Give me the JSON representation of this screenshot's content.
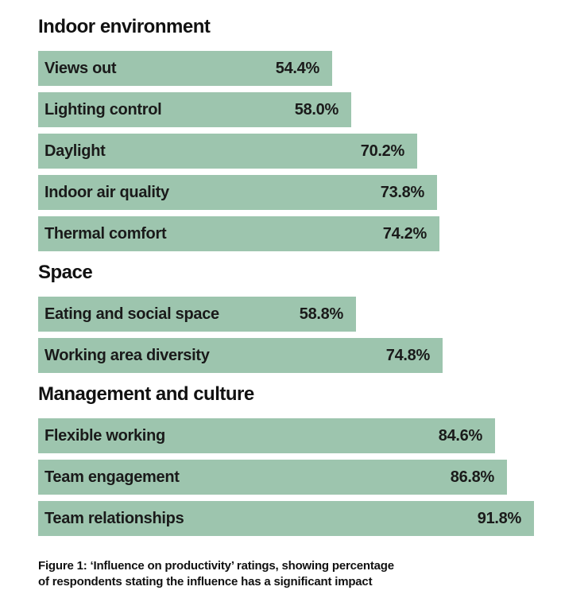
{
  "chart_data": {
    "type": "bar",
    "orientation": "horizontal",
    "value_suffix": "%",
    "bar_color": "#9dc5ae",
    "groups": [
      {
        "title": "Indoor environment",
        "items": [
          {
            "label": "Views out",
            "value": 54.4,
            "display": "54.4%"
          },
          {
            "label": "Lighting control",
            "value": 58.0,
            "display": "58.0%"
          },
          {
            "label": "Daylight",
            "value": 70.2,
            "display": "70.2%"
          },
          {
            "label": "Indoor air quality",
            "value": 73.8,
            "display": "73.8%"
          },
          {
            "label": "Thermal comfort",
            "value": 74.2,
            "display": "74.2%"
          }
        ]
      },
      {
        "title": "Space",
        "items": [
          {
            "label": "Eating and social space",
            "value": 58.8,
            "display": "58.8%"
          },
          {
            "label": "Working area diversity",
            "value": 74.8,
            "display": "74.8%"
          }
        ]
      },
      {
        "title": "Management and culture",
        "items": [
          {
            "label": "Flexible working",
            "value": 84.6,
            "display": "84.6%"
          },
          {
            "label": "Team engagement",
            "value": 86.8,
            "display": "86.8%"
          },
          {
            "label": "Team relationships",
            "value": 91.8,
            "display": "91.8%"
          }
        ]
      }
    ]
  },
  "caption": {
    "line1": "Figure 1: ‘Influence on productivity’ ratings, showing percentage",
    "line2": "of respondents stating the influence has a significant impact"
  }
}
